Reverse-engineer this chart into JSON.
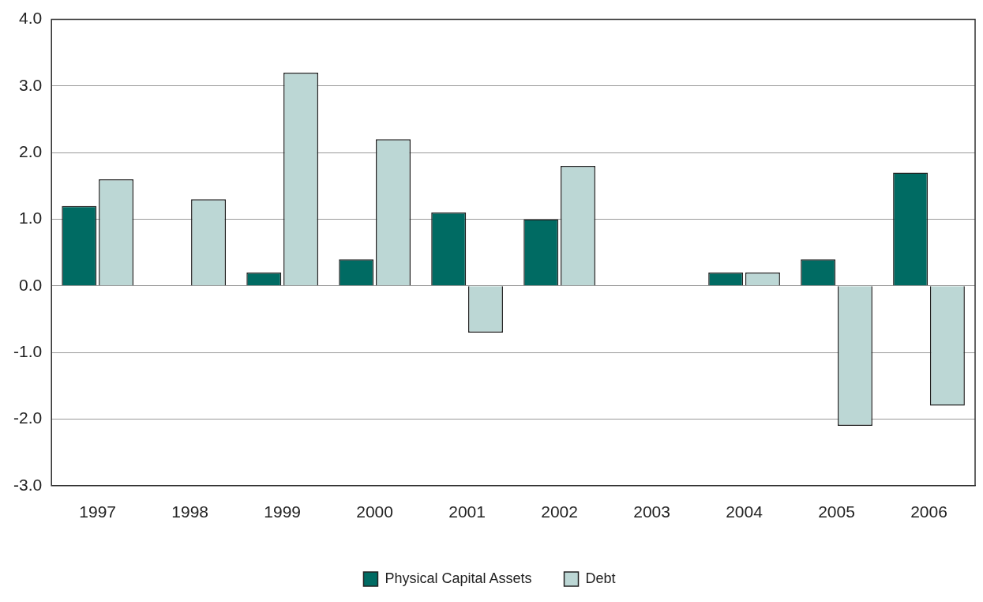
{
  "chart_data": {
    "type": "bar",
    "categories": [
      "1997",
      "1998",
      "1999",
      "2000",
      "2001",
      "2002",
      "2003",
      "2004",
      "2005",
      "2006"
    ],
    "series": [
      {
        "name": "Physical Capital Assets",
        "color": "#006b63",
        "values": [
          1.2,
          0,
          0.2,
          0.4,
          1.1,
          1.0,
          0,
          0.2,
          0.4,
          1.7
        ]
      },
      {
        "name": "Debt",
        "color": "#bcd7d5",
        "values": [
          1.6,
          1.3,
          3.2,
          2.2,
          -0.7,
          1.8,
          0,
          0.2,
          -2.1,
          -1.8
        ]
      }
    ],
    "ylim": [
      -3,
      4
    ],
    "yticks": [
      {
        "value": -3,
        "label": "-3.0"
      },
      {
        "value": -2,
        "label": "-2.0"
      },
      {
        "value": -1,
        "label": "-1.0"
      },
      {
        "value": 0,
        "label": "0.0"
      },
      {
        "value": 1,
        "label": "1.0"
      },
      {
        "value": 2,
        "label": "2.0"
      },
      {
        "value": 3,
        "label": "3.0"
      },
      {
        "value": 4,
        "label": "4.0"
      }
    ],
    "grid": "y",
    "legend": "bottom"
  }
}
